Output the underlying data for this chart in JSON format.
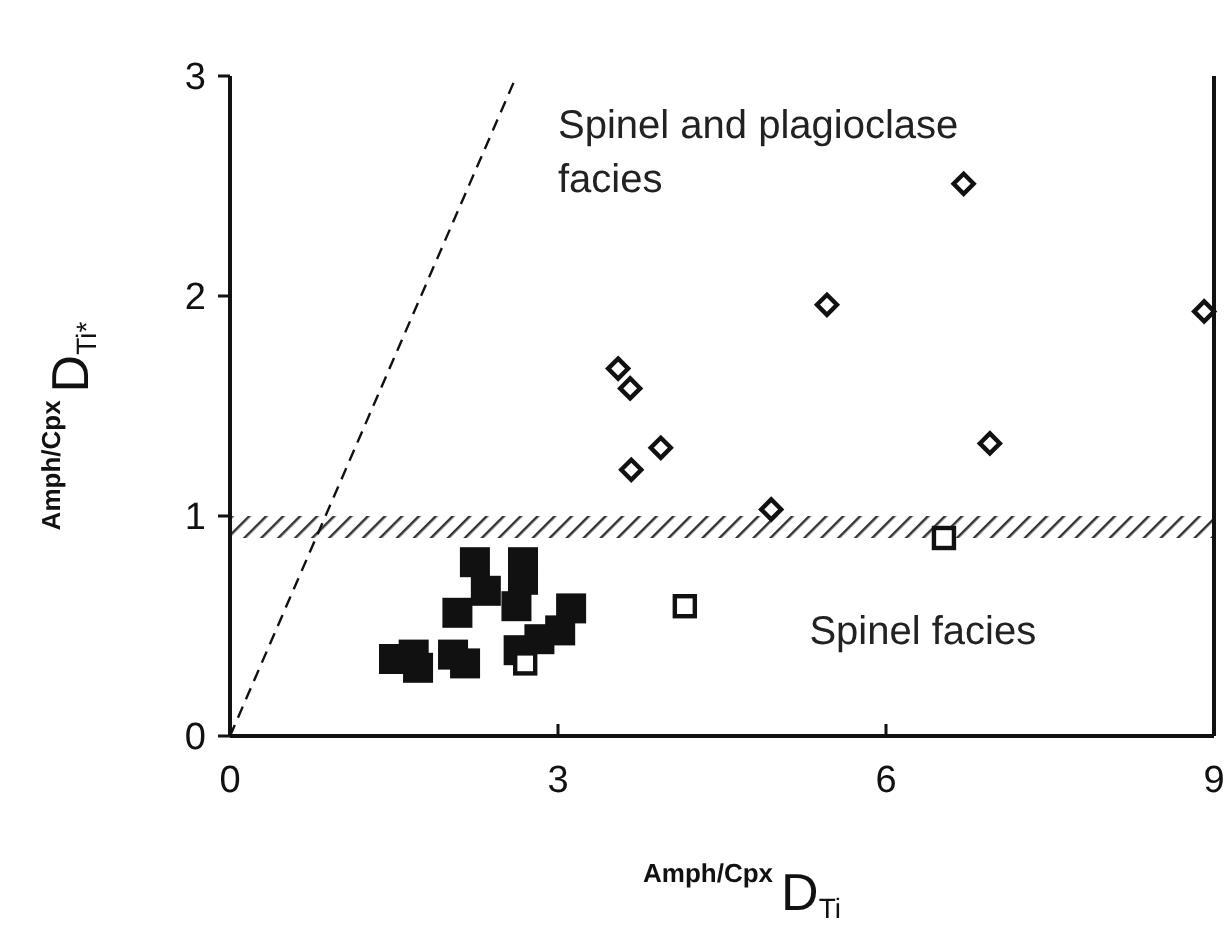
{
  "chart_data": {
    "type": "scatter",
    "xlabel": "$^{Amph/Cpx}$D$_{Ti}$",
    "ylabel": "$^{Amph/Cpx}$D$_{Ti*}$",
    "xlim": [
      0,
      9
    ],
    "xticks": [
      0,
      3,
      6,
      9
    ],
    "ylim": [
      0,
      3
    ],
    "yticks": [
      0,
      1,
      2,
      3
    ],
    "grid": false,
    "annotations": [
      "Spinel and plagioclase\nfacies",
      "Spinel facies"
    ],
    "bands": [
      {
        "axis": "y",
        "from": 0.9,
        "to": 1.0,
        "color": "#333333"
      }
    ],
    "series": [
      {
        "marker": "square",
        "color": "#111111",
        "x": [
          2.24,
          2.68,
          2.68,
          2.34,
          2.62,
          2.08,
          3.12,
          3.02,
          2.83,
          2.64,
          1.68,
          1.5,
          1.72,
          2.04,
          2.15
        ],
        "values": [
          0.79,
          0.79,
          0.71,
          0.66,
          0.59,
          0.56,
          0.58,
          0.48,
          0.44,
          0.39,
          0.37,
          0.35,
          0.31,
          0.37,
          0.33
        ]
      },
      {
        "marker": "square",
        "color": "#111111",
        "x": [
          2.7,
          4.16,
          6.53
        ],
        "values": [
          0.33,
          0.59,
          0.9
        ]
      },
      {
        "marker": "diamond",
        "color": "#111111",
        "x": [
          6.71,
          5.46,
          8.91,
          3.55,
          3.66,
          3.94,
          3.67,
          6.95,
          4.95
        ],
        "values": [
          2.51,
          1.96,
          1.93,
          1.67,
          1.58,
          1.31,
          1.21,
          1.33,
          1.03
        ]
      },
      {
        "type": "line",
        "line_style": "dashed",
        "color": "#111111",
        "x": [
          0,
          2.62
        ],
        "values": [
          0,
          3
        ]
      }
    ]
  }
}
